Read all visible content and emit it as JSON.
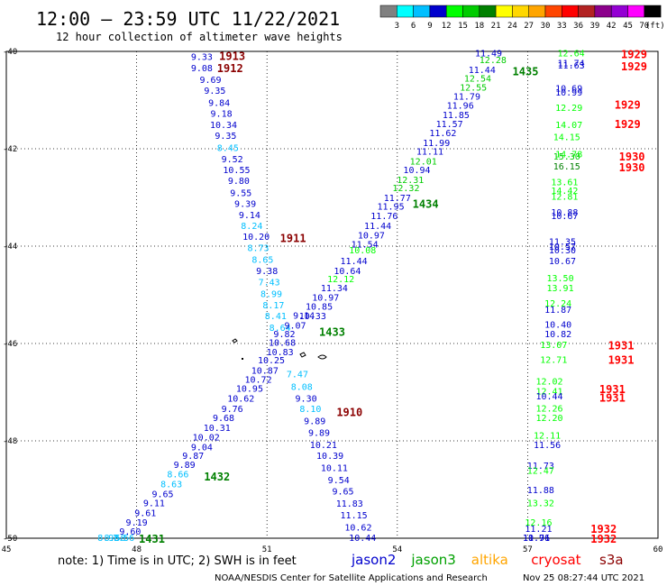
{
  "header": {
    "title": "12:00 – 23:59 UTC 11/22/2021",
    "subtitle": "12 hour collection of altimeter wave heights"
  },
  "colorbar": {
    "unit": "(ft)",
    "colors": [
      "#808080",
      "#00ffff",
      "#00bfff",
      "#0000cd",
      "#00ff00",
      "#00cc00",
      "#008000",
      "#ffff00",
      "#ffd700",
      "#ffa500",
      "#ff4500",
      "#ff0000",
      "#b22222",
      "#8b008b",
      "#9400d3",
      "#ff00ff",
      "#000000"
    ],
    "ticks": [
      "3",
      "6",
      "9",
      "12",
      "15",
      "18",
      "21",
      "24",
      "27",
      "30",
      "33",
      "36",
      "39",
      "42",
      "45",
      "70"
    ]
  },
  "footer": {
    "note": "note: 1) Time is in UTC; 2) SWH is in feet",
    "credit": "NOAA/NESDIS Center for Satellite Applications and Research",
    "timestamp": "Nov 25 08:27:44 UTC 2021",
    "legend": [
      {
        "name": "jason2",
        "color": "#0000cd"
      },
      {
        "name": "jason3",
        "color": "#00a000"
      },
      {
        "name": "altika",
        "color": "#ffa500"
      },
      {
        "name": "cryosat",
        "color": "#ff0000"
      },
      {
        "name": "s3a",
        "color": "#8b0000"
      }
    ]
  },
  "chart_data": {
    "type": "scatter",
    "title": "12:00 – 23:59 UTC 11/22/2021",
    "subtitle": "12 hour collection of altimeter wave heights",
    "xlim": [
      45,
      60
    ],
    "ylim": [
      -50,
      -40
    ],
    "xticks": [
      "45",
      "48",
      "51",
      "54",
      "57",
      "60"
    ],
    "xtick_values": [
      45,
      48,
      51,
      54,
      57,
      60
    ],
    "yticks": [
      "-40",
      "-42",
      "-44",
      "-46",
      "-48",
      "-50"
    ],
    "ytick_values": [
      -40,
      -42,
      -44,
      -46,
      -48,
      -50
    ],
    "grid": true,
    "labels": [
      {
        "t": "9.33",
        "x": 49.5,
        "y": -40.1,
        "c": "#0000cd"
      },
      {
        "t": "9.08",
        "x": 49.5,
        "y": -40.33,
        "c": "#0000cd"
      },
      {
        "t": "9.69",
        "x": 49.7,
        "y": -40.57,
        "c": "#0000cd"
      },
      {
        "t": "9.35",
        "x": 49.8,
        "y": -40.8,
        "c": "#0000cd"
      },
      {
        "t": "9.84",
        "x": 49.9,
        "y": -41.05,
        "c": "#0000cd"
      },
      {
        "t": "9.18",
        "x": 49.95,
        "y": -41.27,
        "c": "#0000cd"
      },
      {
        "t": "10.34",
        "x": 50.0,
        "y": -41.5,
        "c": "#0000cd"
      },
      {
        "t": "9.35",
        "x": 50.05,
        "y": -41.72,
        "c": "#0000cd"
      },
      {
        "t": "8.45",
        "x": 50.1,
        "y": -41.97,
        "c": "#00bfff"
      },
      {
        "t": "9.52",
        "x": 50.2,
        "y": -42.2,
        "c": "#0000cd"
      },
      {
        "t": "10.55",
        "x": 50.3,
        "y": -42.43,
        "c": "#0000cd"
      },
      {
        "t": "9.80",
        "x": 50.35,
        "y": -42.65,
        "c": "#0000cd"
      },
      {
        "t": "9.55",
        "x": 50.4,
        "y": -42.9,
        "c": "#0000cd"
      },
      {
        "t": "9.39",
        "x": 50.5,
        "y": -43.12,
        "c": "#0000cd"
      },
      {
        "t": "9.14",
        "x": 50.6,
        "y": -43.35,
        "c": "#0000cd"
      },
      {
        "t": "8.24",
        "x": 50.65,
        "y": -43.57,
        "c": "#00bfff"
      },
      {
        "t": "10.20",
        "x": 50.75,
        "y": -43.8,
        "c": "#0000cd"
      },
      {
        "t": "8.73",
        "x": 50.8,
        "y": -44.03,
        "c": "#00bfff"
      },
      {
        "t": "8.65",
        "x": 50.9,
        "y": -44.27,
        "c": "#00bfff"
      },
      {
        "t": "9.38",
        "x": 51.0,
        "y": -44.5,
        "c": "#0000cd"
      },
      {
        "t": "7.43",
        "x": 51.05,
        "y": -44.73,
        "c": "#00bfff"
      },
      {
        "t": "8.99",
        "x": 51.1,
        "y": -44.97,
        "c": "#00bfff"
      },
      {
        "t": "8.17",
        "x": 51.15,
        "y": -45.2,
        "c": "#00bfff"
      },
      {
        "t": "8.41",
        "x": 51.2,
        "y": -45.43,
        "c": "#00bfff"
      },
      {
        "t": "8.64",
        "x": 51.3,
        "y": -45.67,
        "c": "#00bfff"
      },
      {
        "t": "9.82",
        "x": 51.4,
        "y": -45.8,
        "c": "#0000cd"
      },
      {
        "t": "9.07",
        "x": 51.65,
        "y": -45.62,
        "c": "#0000cd"
      },
      {
        "t": "9.14",
        "x": 51.85,
        "y": -45.42,
        "c": "#0000cd"
      },
      {
        "t": "10.68",
        "x": 51.35,
        "y": -45.97,
        "c": "#0000cd"
      },
      {
        "t": "10.83",
        "x": 51.3,
        "y": -46.17,
        "c": "#0000cd"
      },
      {
        "t": "10.25",
        "x": 51.1,
        "y": -46.33,
        "c": "#0000cd"
      },
      {
        "t": "10.87",
        "x": 50.95,
        "y": -46.55,
        "c": "#0000cd"
      },
      {
        "t": "10.72",
        "x": 50.8,
        "y": -46.73,
        "c": "#0000cd"
      },
      {
        "t": "10.95",
        "x": 50.6,
        "y": -46.92,
        "c": "#0000cd"
      },
      {
        "t": "10.62",
        "x": 50.4,
        "y": -47.12,
        "c": "#0000cd"
      },
      {
        "t": "9.76",
        "x": 50.2,
        "y": -47.33,
        "c": "#0000cd"
      },
      {
        "t": "9.68",
        "x": 50.0,
        "y": -47.52,
        "c": "#0000cd"
      },
      {
        "t": "10.31",
        "x": 49.85,
        "y": -47.72,
        "c": "#0000cd"
      },
      {
        "t": "10.02",
        "x": 49.6,
        "y": -47.92,
        "c": "#0000cd"
      },
      {
        "t": "9.04",
        "x": 49.5,
        "y": -48.12,
        "c": "#0000cd"
      },
      {
        "t": "9.87",
        "x": 49.3,
        "y": -48.3,
        "c": "#0000cd"
      },
      {
        "t": "9.89",
        "x": 49.1,
        "y": -48.48,
        "c": "#0000cd"
      },
      {
        "t": "8.66",
        "x": 48.95,
        "y": -48.68,
        "c": "#00bfff"
      },
      {
        "t": "8.63",
        "x": 48.8,
        "y": -48.88,
        "c": "#00bfff"
      },
      {
        "t": "9.65",
        "x": 48.6,
        "y": -49.08,
        "c": "#0000cd"
      },
      {
        "t": "9.11",
        "x": 48.4,
        "y": -49.27,
        "c": "#0000cd"
      },
      {
        "t": "9.61",
        "x": 48.2,
        "y": -49.47,
        "c": "#0000cd"
      },
      {
        "t": "9.19",
        "x": 48.0,
        "y": -49.67,
        "c": "#0000cd"
      },
      {
        "t": "9.60",
        "x": 47.85,
        "y": -49.85,
        "c": "#0000cd"
      },
      {
        "t": "7.56",
        "x": 47.7,
        "y": -50.05,
        "c": "#00bfff"
      },
      {
        "t": "8.58",
        "x": 47.5,
        "y": -50.22,
        "c": "#00bfff"
      },
      {
        "t": "8.98",
        "x": 47.35,
        "y": -50.42,
        "c": "#00bfff"
      },
      {
        "t": "7.47",
        "x": 51.7,
        "y": -46.62,
        "c": "#00bfff"
      },
      {
        "t": "8.08",
        "x": 51.8,
        "y": -46.88,
        "c": "#00bfff"
      },
      {
        "t": "9.30",
        "x": 51.9,
        "y": -47.12,
        "c": "#0000cd"
      },
      {
        "t": "8.10",
        "x": 52.0,
        "y": -47.33,
        "c": "#00bfff"
      },
      {
        "t": "9.89",
        "x": 52.1,
        "y": -47.58,
        "c": "#0000cd"
      },
      {
        "t": "9.89",
        "x": 52.2,
        "y": -47.82,
        "c": "#0000cd"
      },
      {
        "t": "10.21",
        "x": 52.3,
        "y": -48.07,
        "c": "#0000cd"
      },
      {
        "t": "10.39",
        "x": 52.45,
        "y": -48.3,
        "c": "#0000cd"
      },
      {
        "t": "10.11",
        "x": 52.55,
        "y": -48.55,
        "c": "#0000cd"
      },
      {
        "t": "9.54",
        "x": 52.65,
        "y": -48.8,
        "c": "#0000cd"
      },
      {
        "t": "9.65",
        "x": 52.75,
        "y": -49.03,
        "c": "#0000cd"
      },
      {
        "t": "11.83",
        "x": 52.9,
        "y": -49.28,
        "c": "#0000cd"
      },
      {
        "t": "11.15",
        "x": 53.0,
        "y": -49.52,
        "c": "#0000cd"
      },
      {
        "t": "10.62",
        "x": 53.1,
        "y": -49.77,
        "c": "#0000cd"
      },
      {
        "t": "10.44",
        "x": 53.2,
        "y": -50.0,
        "c": "#0000cd"
      },
      {
        "t": "11.49",
        "x": 56.1,
        "y": -40.03,
        "c": "#0000cd"
      },
      {
        "t": "12.28",
        "x": 56.2,
        "y": -40.17,
        "c": "#00cc00"
      },
      {
        "t": "11.44",
        "x": 55.95,
        "y": -40.37,
        "c": "#0000cd"
      },
      {
        "t": "12.54",
        "x": 55.85,
        "y": -40.55,
        "c": "#00cc00"
      },
      {
        "t": "12.55",
        "x": 55.75,
        "y": -40.73,
        "c": "#00cc00"
      },
      {
        "t": "11.79",
        "x": 55.6,
        "y": -40.92,
        "c": "#0000cd"
      },
      {
        "t": "11.96",
        "x": 55.45,
        "y": -41.1,
        "c": "#0000cd"
      },
      {
        "t": "11.85",
        "x": 55.35,
        "y": -41.3,
        "c": "#0000cd"
      },
      {
        "t": "11.57",
        "x": 55.2,
        "y": -41.48,
        "c": "#0000cd"
      },
      {
        "t": "11.62",
        "x": 55.05,
        "y": -41.67,
        "c": "#0000cd"
      },
      {
        "t": "11.99",
        "x": 54.9,
        "y": -41.87,
        "c": "#0000cd"
      },
      {
        "t": "11.11",
        "x": 54.75,
        "y": -42.05,
        "c": "#0000cd"
      },
      {
        "t": "12.01",
        "x": 54.6,
        "y": -42.25,
        "c": "#00cc00"
      },
      {
        "t": "10.94",
        "x": 54.45,
        "y": -42.43,
        "c": "#0000cd"
      },
      {
        "t": "12.31",
        "x": 54.3,
        "y": -42.63,
        "c": "#00cc00"
      },
      {
        "t": "12.32",
        "x": 54.2,
        "y": -42.8,
        "c": "#00cc00"
      },
      {
        "t": "11.77",
        "x": 54.0,
        "y": -43.0,
        "c": "#0000cd"
      },
      {
        "t": "11.95",
        "x": 53.85,
        "y": -43.18,
        "c": "#0000cd"
      },
      {
        "t": "11.76",
        "x": 53.7,
        "y": -43.37,
        "c": "#0000cd"
      },
      {
        "t": "11.44",
        "x": 53.55,
        "y": -43.57,
        "c": "#0000cd"
      },
      {
        "t": "10.97",
        "x": 53.4,
        "y": -43.77,
        "c": "#0000cd"
      },
      {
        "t": "11.54",
        "x": 53.25,
        "y": -43.95,
        "c": "#0000cd"
      },
      {
        "t": "10.08",
        "x": 53.2,
        "y": -44.07,
        "c": "#00ff00"
      },
      {
        "t": "11.44",
        "x": 53.0,
        "y": -44.3,
        "c": "#0000cd"
      },
      {
        "t": "10.64",
        "x": 52.85,
        "y": -44.5,
        "c": "#0000cd"
      },
      {
        "t": "12.12",
        "x": 52.7,
        "y": -44.67,
        "c": "#00ff00"
      },
      {
        "t": "11.34",
        "x": 52.55,
        "y": -44.85,
        "c": "#0000cd"
      },
      {
        "t": "10.97",
        "x": 52.35,
        "y": -45.05,
        "c": "#0000cd"
      },
      {
        "t": "10.85",
        "x": 52.2,
        "y": -45.23,
        "c": "#0000cd"
      },
      {
        "t": "10.33",
        "x": 52.05,
        "y": -45.43,
        "c": "#0000cd"
      },
      {
        "t": "12.64",
        "x": 58.0,
        "y": -40.03,
        "c": "#00ff00"
      },
      {
        "t": "11.74",
        "x": 58.0,
        "y": -40.23,
        "c": "#0000cd"
      },
      {
        "t": "11.63",
        "x": 58.0,
        "y": -40.28,
        "c": "#0000cd"
      },
      {
        "t": "10.69",
        "x": 57.95,
        "y": -40.75,
        "c": "#0000cd"
      },
      {
        "t": "10.99",
        "x": 57.95,
        "y": -40.83,
        "c": "#0000cd"
      },
      {
        "t": "12.29",
        "x": 57.95,
        "y": -41.15,
        "c": "#00ff00"
      },
      {
        "t": "14.07",
        "x": 57.95,
        "y": -41.5,
        "c": "#00ff00"
      },
      {
        "t": "14.15",
        "x": 57.9,
        "y": -41.75,
        "c": "#00ff00"
      },
      {
        "t": "14.78",
        "x": 57.95,
        "y": -42.1,
        "c": "#00ff00"
      },
      {
        "t": "15.30",
        "x": 57.9,
        "y": -42.15,
        "c": "#00cc00"
      },
      {
        "t": "16.15",
        "x": 57.9,
        "y": -42.35,
        "c": "#008000"
      },
      {
        "t": "13.61",
        "x": 57.85,
        "y": -42.68,
        "c": "#00ff00"
      },
      {
        "t": "14.42",
        "x": 57.85,
        "y": -42.85,
        "c": "#00ff00"
      },
      {
        "t": "12.81",
        "x": 57.85,
        "y": -42.97,
        "c": "#00ff00"
      },
      {
        "t": "10.88",
        "x": 57.85,
        "y": -43.3,
        "c": "#0000cd"
      },
      {
        "t": "10.67",
        "x": 57.85,
        "y": -43.37,
        "c": "#0000cd"
      },
      {
        "t": "11.35",
        "x": 57.8,
        "y": -43.9,
        "c": "#0000cd"
      },
      {
        "t": "10.57",
        "x": 57.8,
        "y": -44.0,
        "c": "#0000cd"
      },
      {
        "t": "10.30",
        "x": 57.8,
        "y": -44.07,
        "c": "#0000cd"
      },
      {
        "t": "10.67",
        "x": 57.8,
        "y": -44.3,
        "c": "#0000cd"
      },
      {
        "t": "13.50",
        "x": 57.75,
        "y": -44.65,
        "c": "#00ff00"
      },
      {
        "t": "13.91",
        "x": 57.75,
        "y": -44.85,
        "c": "#00ff00"
      },
      {
        "t": "12.24",
        "x": 57.7,
        "y": -45.17,
        "c": "#00ff00"
      },
      {
        "t": "11.87",
        "x": 57.7,
        "y": -45.3,
        "c": "#0000cd"
      },
      {
        "t": "10.40",
        "x": 57.7,
        "y": -45.6,
        "c": "#0000cd"
      },
      {
        "t": "10.82",
        "x": 57.7,
        "y": -45.8,
        "c": "#0000cd"
      },
      {
        "t": "13.07",
        "x": 57.6,
        "y": -46.02,
        "c": "#00ff00"
      },
      {
        "t": "12.71",
        "x": 57.6,
        "y": -46.32,
        "c": "#00ff00"
      },
      {
        "t": "12.02",
        "x": 57.5,
        "y": -46.77,
        "c": "#00ff00"
      },
      {
        "t": "12.41",
        "x": 57.5,
        "y": -46.97,
        "c": "#00ff00"
      },
      {
        "t": "10.44",
        "x": 57.5,
        "y": -47.07,
        "c": "#0000cd"
      },
      {
        "t": "12.26",
        "x": 57.5,
        "y": -47.32,
        "c": "#00ff00"
      },
      {
        "t": "12.20",
        "x": 57.5,
        "y": -47.52,
        "c": "#00ff00"
      },
      {
        "t": "12.11",
        "x": 57.45,
        "y": -47.88,
        "c": "#00ff00"
      },
      {
        "t": "11.56",
        "x": 57.45,
        "y": -48.07,
        "c": "#0000cd"
      },
      {
        "t": "11.73",
        "x": 57.3,
        "y": -48.5,
        "c": "#0000cd"
      },
      {
        "t": "12.47",
        "x": 57.3,
        "y": -48.6,
        "c": "#00ff00"
      },
      {
        "t": "11.88",
        "x": 57.3,
        "y": -49.0,
        "c": "#0000cd"
      },
      {
        "t": "13.32",
        "x": 57.3,
        "y": -49.27,
        "c": "#00ff00"
      },
      {
        "t": "12.16",
        "x": 57.25,
        "y": -49.67,
        "c": "#00ff00"
      },
      {
        "t": "11.21",
        "x": 57.25,
        "y": -49.8,
        "c": "#0000cd"
      },
      {
        "t": "10.91",
        "x": 57.2,
        "y": -50.17,
        "c": "#0000cd"
      },
      {
        "t": "11.76",
        "x": 57.2,
        "y": -50.3,
        "c": "#0000cd"
      }
    ],
    "annotations": [
      {
        "t": "1913",
        "x": 50.2,
        "y": -40.08,
        "c": "#8b0000"
      },
      {
        "t": "1912",
        "x": 50.15,
        "y": -40.33,
        "c": "#8b0000"
      },
      {
        "t": "1911",
        "x": 51.6,
        "y": -43.82,
        "c": "#8b0000"
      },
      {
        "t": "1910",
        "x": 52.9,
        "y": -47.4,
        "c": "#8b0000"
      },
      {
        "t": "1435",
        "x": 56.95,
        "y": -40.4,
        "c": "#008000"
      },
      {
        "t": "1434",
        "x": 54.65,
        "y": -43.12,
        "c": "#008000"
      },
      {
        "t": "1433",
        "x": 52.5,
        "y": -45.75,
        "c": "#008000"
      },
      {
        "t": "1432",
        "x": 49.85,
        "y": -48.72,
        "c": "#008000"
      },
      {
        "t": "1431",
        "x": 48.35,
        "y": -50.4,
        "c": "#008000"
      },
      {
        "t": "1929",
        "x": 59.45,
        "y": -40.05,
        "c": "#ff0000"
      },
      {
        "t": "1929",
        "x": 59.45,
        "y": -40.3,
        "c": "#ff0000"
      },
      {
        "t": "1929",
        "x": 59.3,
        "y": -41.08,
        "c": "#ff0000"
      },
      {
        "t": "1929",
        "x": 59.3,
        "y": -41.48,
        "c": "#ff0000"
      },
      {
        "t": "1930",
        "x": 59.4,
        "y": -42.15,
        "c": "#ff0000"
      },
      {
        "t": "1930",
        "x": 59.4,
        "y": -42.37,
        "c": "#ff0000"
      },
      {
        "t": "1931",
        "x": 59.15,
        "y": -46.03,
        "c": "#ff0000"
      },
      {
        "t": "1931",
        "x": 59.15,
        "y": -46.32,
        "c": "#ff0000"
      },
      {
        "t": "1931",
        "x": 58.95,
        "y": -46.93,
        "c": "#ff0000"
      },
      {
        "t": "1931",
        "x": 58.95,
        "y": -47.1,
        "c": "#ff0000"
      },
      {
        "t": "1932",
        "x": 58.75,
        "y": -49.8,
        "c": "#ff0000"
      },
      {
        "t": "1932",
        "x": 58.75,
        "y": -50.1,
        "c": "#ff0000"
      }
    ]
  }
}
